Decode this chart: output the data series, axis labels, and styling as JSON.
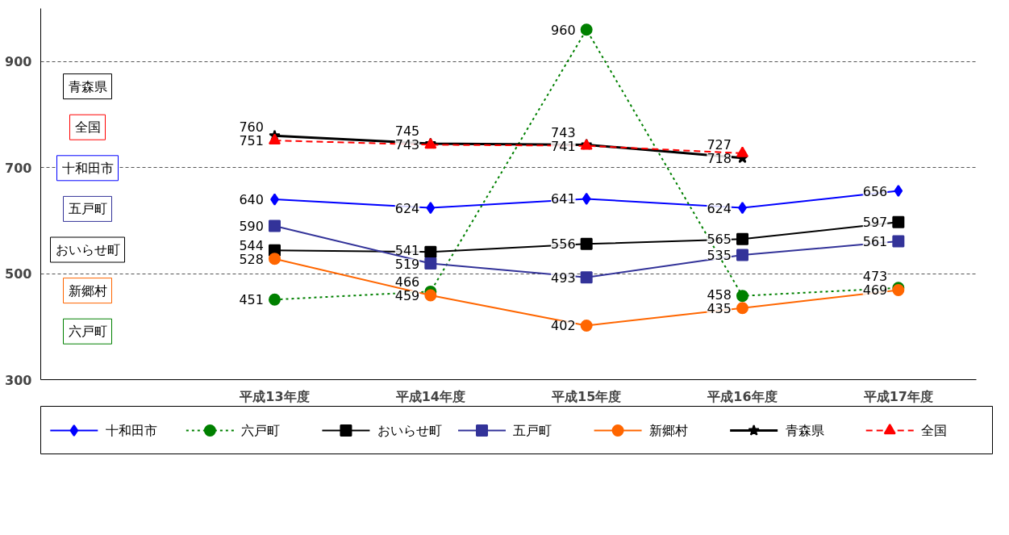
{
  "chart_data": {
    "type": "line",
    "categories": [
      null,
      "平成13年度",
      "平成14年度",
      "平成15年度",
      "平成16年度",
      "平成17年度"
    ],
    "ylim": [
      300,
      1000
    ],
    "yticks": [
      300,
      500,
      700,
      900
    ],
    "grid": "y",
    "data_labels": true,
    "legend": "bottom",
    "series": [
      {
        "name": "十和田市",
        "color": "#0000ff",
        "marker": "diamond",
        "line_style": "solid",
        "values": [
          null,
          640,
          624,
          641,
          624,
          656
        ]
      },
      {
        "name": "六戸町",
        "color": "#008000",
        "marker": "circle",
        "line_style": "dotted",
        "values": [
          null,
          451,
          466,
          960,
          458,
          473
        ]
      },
      {
        "name": "おいらせ町",
        "color": "#000000",
        "marker": "square",
        "line_style": "solid",
        "values": [
          null,
          544,
          541,
          556,
          565,
          597
        ]
      },
      {
        "name": "五戸町",
        "color": "#333399",
        "marker": "square",
        "line_style": "solid",
        "values": [
          null,
          590,
          519,
          493,
          535,
          561
        ]
      },
      {
        "name": "新郷村",
        "color": "#ff6600",
        "marker": "circle",
        "line_style": "solid",
        "values": [
          null,
          528,
          459,
          402,
          435,
          469
        ]
      },
      {
        "name": "青森県",
        "color": "#000000",
        "marker": "star",
        "line_style": "solid",
        "values": [
          null,
          760,
          745,
          743,
          718,
          null
        ]
      },
      {
        "name": "全国",
        "color": "#ff0000",
        "marker": "triangle",
        "line_style": "dashed",
        "values": [
          null,
          751,
          743,
          741,
          727,
          null
        ]
      }
    ]
  }
}
